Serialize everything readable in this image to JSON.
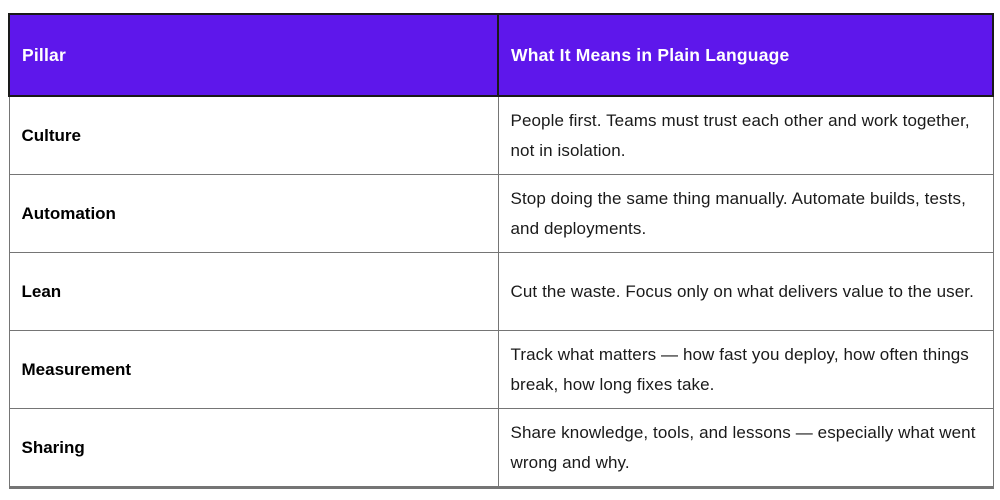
{
  "table": {
    "columns": [
      {
        "label": "Pillar"
      },
      {
        "label": "What It Means in Plain Language"
      }
    ],
    "rows": [
      {
        "pillar": "Culture",
        "meaning": "People first. Teams must trust each other and work together, not in isolation."
      },
      {
        "pillar": "Automation",
        "meaning": "Stop doing the same thing manually. Automate builds, tests, and deployments."
      },
      {
        "pillar": "Lean",
        "meaning": "Cut the waste. Focus only on what delivers value to the user."
      },
      {
        "pillar": "Measurement",
        "meaning": "Track what matters — how fast you deploy, how often things break, how long fixes take."
      },
      {
        "pillar": "Sharing",
        "meaning": "Share knowledge, tools, and lessons — especially what went wrong and why."
      }
    ],
    "colors": {
      "header_bg": "#5E17EB",
      "header_text": "#FFFFFF",
      "header_border": "#1A1A1A",
      "row_border": "#757575",
      "body_text": "#1A1A1A"
    }
  }
}
